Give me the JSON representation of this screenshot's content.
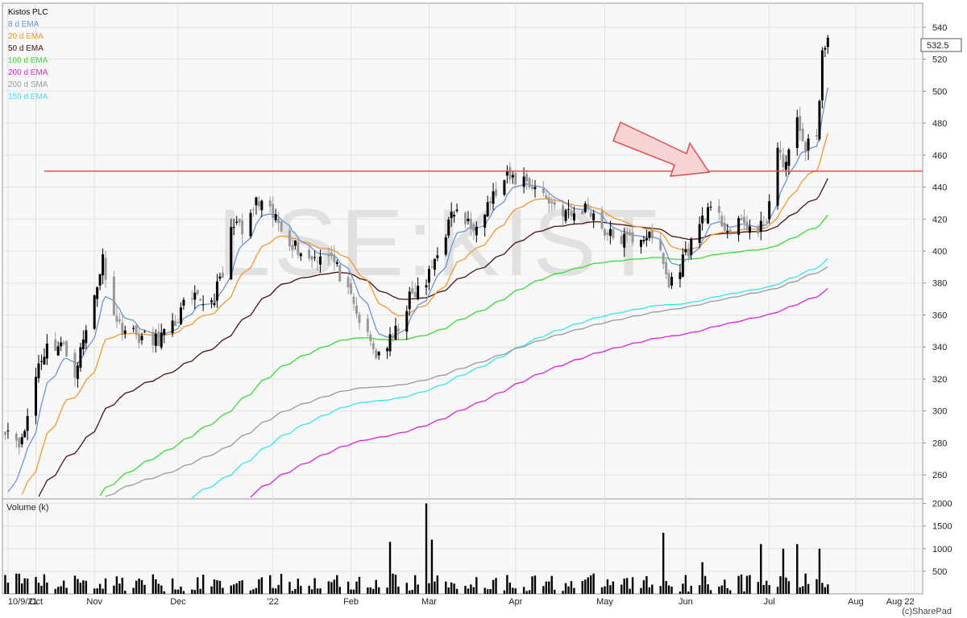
{
  "chart_data": {
    "type": "candlestick",
    "title": "Kistos PLC",
    "watermark": "LSE:KIST",
    "copyright": "(c)SharePad",
    "last_price_label": "532.5",
    "colors": {
      "up": "#000000",
      "down": "#999999",
      "resistance": "#e8494d",
      "arrow_fill": "#f7d4d4",
      "arrow_stroke": "#e8494d"
    },
    "legend": [
      {
        "label": "Kistos PLC",
        "color": "#000000"
      },
      {
        "label": "8 d EMA",
        "color": "#6b93d6"
      },
      {
        "label": "20 d EMA",
        "color": "#f5962b"
      },
      {
        "label": "50 d EMA",
        "color": "#4b1010"
      },
      {
        "label": "100 d EMA",
        "color": "#33dd33"
      },
      {
        "label": "200 d EMA",
        "color": "#e020e0"
      },
      {
        "label": "200 d SMA",
        "color": "#999999"
      },
      {
        "label": "150 d EMA",
        "color": "#33e5f0"
      }
    ],
    "price_axis": {
      "ylim": [
        245,
        555
      ],
      "ticks": [
        260,
        280,
        300,
        320,
        340,
        360,
        380,
        400,
        420,
        440,
        460,
        480,
        500,
        520,
        540
      ]
    },
    "volume_axis": {
      "label": "Volume (k)",
      "ylim": [
        0,
        2100
      ],
      "ticks": [
        500,
        1000,
        1500,
        2000
      ]
    },
    "x_axis": {
      "range": [
        "2021-09-29",
        "2022-08-25"
      ],
      "ticks": [
        {
          "date": "2021-10-01",
          "label": "10/9/21"
        },
        {
          "date": "2021-10-11",
          "label": "Oct"
        },
        {
          "date": "2021-11-01",
          "label": "Nov"
        },
        {
          "date": "2021-12-01",
          "label": "Dec"
        },
        {
          "date": "2022-01-04",
          "label": "'22"
        },
        {
          "date": "2022-02-01",
          "label": "Feb"
        },
        {
          "date": "2022-03-01",
          "label": "Mar"
        },
        {
          "date": "2022-04-01",
          "label": "Apr"
        },
        {
          "date": "2022-05-03",
          "label": "May"
        },
        {
          "date": "2022-06-01",
          "label": "Jun"
        },
        {
          "date": "2022-07-01",
          "label": "Jul"
        },
        {
          "date": "2022-08-01",
          "label": "Aug"
        },
        {
          "date": "2022-08-22",
          "label": "Aug 22"
        }
      ]
    },
    "resistance_line": {
      "value": 450,
      "start": "2021-10-14"
    },
    "close_anchors": [
      [
        "2021-09-30",
        290
      ],
      [
        "2021-10-06",
        280
      ],
      [
        "2021-10-12",
        330
      ],
      [
        "2021-10-15",
        340
      ],
      [
        "2021-10-20",
        342
      ],
      [
        "2021-10-25",
        325
      ],
      [
        "2021-10-29",
        350
      ],
      [
        "2021-11-04",
        395
      ],
      [
        "2021-11-09",
        355
      ],
      [
        "2021-11-15",
        348
      ],
      [
        "2021-11-22",
        343
      ],
      [
        "2021-11-29",
        352
      ],
      [
        "2021-12-03",
        365
      ],
      [
        "2021-12-08",
        370
      ],
      [
        "2021-12-13",
        368
      ],
      [
        "2021-12-17",
        385
      ],
      [
        "2021-12-21",
        420
      ],
      [
        "2021-12-24",
        410
      ],
      [
        "2021-12-29",
        430
      ],
      [
        "2022-01-05",
        420
      ],
      [
        "2022-01-11",
        405
      ],
      [
        "2022-01-17",
        395
      ],
      [
        "2022-01-24",
        400
      ],
      [
        "2022-01-28",
        385
      ],
      [
        "2022-02-03",
        360
      ],
      [
        "2022-02-10",
        335
      ],
      [
        "2022-02-16",
        345
      ],
      [
        "2022-02-22",
        370
      ],
      [
        "2022-02-28",
        380
      ],
      [
        "2022-03-04",
        400
      ],
      [
        "2022-03-10",
        425
      ],
      [
        "2022-03-16",
        415
      ],
      [
        "2022-03-22",
        430
      ],
      [
        "2022-03-29",
        445
      ],
      [
        "2022-04-04",
        445
      ],
      [
        "2022-04-08",
        440
      ],
      [
        "2022-04-14",
        430
      ],
      [
        "2022-04-21",
        422
      ],
      [
        "2022-04-27",
        428
      ],
      [
        "2022-05-04",
        410
      ],
      [
        "2022-05-11",
        407
      ],
      [
        "2022-05-18",
        410
      ],
      [
        "2022-05-23",
        400
      ],
      [
        "2022-05-26",
        378
      ],
      [
        "2022-05-31",
        395
      ],
      [
        "2022-06-03",
        405
      ],
      [
        "2022-06-08",
        425
      ],
      [
        "2022-06-13",
        420
      ],
      [
        "2022-06-17",
        412
      ],
      [
        "2022-06-22",
        418
      ],
      [
        "2022-06-27",
        410
      ],
      [
        "2022-06-30",
        422
      ],
      [
        "2022-07-04",
        460
      ],
      [
        "2022-07-07",
        455
      ],
      [
        "2022-07-11",
        480
      ],
      [
        "2022-07-14",
        465
      ],
      [
        "2022-07-18",
        470
      ],
      [
        "2022-07-20",
        525
      ],
      [
        "2022-07-22",
        532
      ]
    ],
    "volume_spikes": [
      [
        "2022-01-29",
        1100
      ],
      [
        "2022-02-15",
        1150
      ],
      [
        "2022-02-28",
        2000
      ],
      [
        "2022-03-02",
        1200
      ],
      [
        "2022-05-24",
        1350
      ],
      [
        "2022-06-07",
        700
      ],
      [
        "2022-06-28",
        1100
      ],
      [
        "2022-07-06",
        1000
      ],
      [
        "2022-07-11",
        1100
      ],
      [
        "2022-07-19",
        1000
      ]
    ]
  }
}
